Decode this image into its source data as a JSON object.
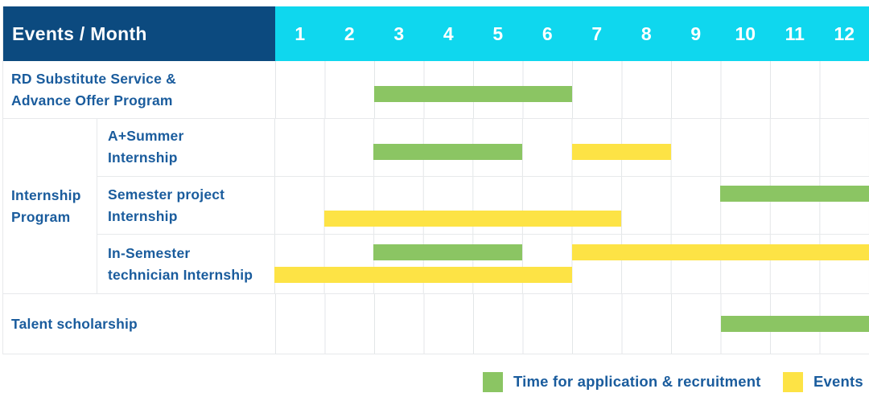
{
  "colors": {
    "navy": "#0c4a7f",
    "cyan": "#0fd7ee",
    "green": "#8bc563",
    "yellow": "#fde345",
    "text-blue": "#1a5c9d"
  },
  "header": {
    "corner_label": "Events / Month",
    "months": [
      "1",
      "2",
      "3",
      "4",
      "5",
      "6",
      "7",
      "8",
      "9",
      "10",
      "11",
      "12"
    ]
  },
  "group": {
    "label1": "Internship",
    "label2": "Program"
  },
  "rows": [
    {
      "label1": "RD Substitute Service &",
      "label2": "Advance Offer Program",
      "bars": [
        {
          "line": 0,
          "color": "green",
          "start": 3,
          "end": 6
        }
      ]
    },
    {
      "label1": "A+Summer",
      "label2": "Internship",
      "bars": [
        {
          "line": 0,
          "color": "green",
          "start": 3,
          "end": 5
        },
        {
          "line": 0,
          "color": "yellow",
          "start": 7,
          "end": 8
        }
      ]
    },
    {
      "label1": "Semester project",
      "label2": "Internship",
      "bars": [
        {
          "line": 0,
          "color": "green",
          "start": 10,
          "end": 12
        },
        {
          "line": 1,
          "color": "yellow",
          "start": 2,
          "end": 7
        }
      ]
    },
    {
      "label1": "In-Semester",
      "label2": "technician Internship",
      "bars": [
        {
          "line": 0,
          "color": "green",
          "start": 3,
          "end": 5
        },
        {
          "line": 0,
          "color": "yellow",
          "start": 7,
          "end": 12
        },
        {
          "line": 1,
          "color": "yellow",
          "start": 1,
          "end": 6
        }
      ]
    },
    {
      "label1": "Talent scholarship",
      "label2": "",
      "bars": [
        {
          "line": 0,
          "color": "green",
          "start": 10,
          "end": 12
        }
      ]
    }
  ],
  "legend": [
    {
      "color": "green",
      "label": "Time for application & recruitment"
    },
    {
      "color": "yellow",
      "label": "Events"
    }
  ],
  "chart_data": {
    "type": "table",
    "title": "Events / Month",
    "x_axis": {
      "label": "Month",
      "ticks": [
        1,
        2,
        3,
        4,
        5,
        6,
        7,
        8,
        9,
        10,
        11,
        12
      ],
      "range": [
        1,
        12
      ]
    },
    "grid": true,
    "legend_position": "bottom-right",
    "legend": [
      "Time for application & recruitment",
      "Events"
    ],
    "rows": [
      {
        "event": "RD Substitute Service & Advance Offer Program",
        "group": null,
        "application_recruitment_month_ranges": [
          [
            3,
            6
          ]
        ],
        "events_month_ranges": []
      },
      {
        "event": "A+Summer Internship",
        "group": "Internship Program",
        "application_recruitment_month_ranges": [
          [
            3,
            5
          ]
        ],
        "events_month_ranges": [
          [
            7,
            8
          ]
        ]
      },
      {
        "event": "Semester project Internship",
        "group": "Internship Program",
        "application_recruitment_month_ranges": [
          [
            10,
            12
          ]
        ],
        "events_month_ranges": [
          [
            2,
            7
          ]
        ]
      },
      {
        "event": "In-Semester technician Internship",
        "group": "Internship Program",
        "application_recruitment_month_ranges": [
          [
            3,
            5
          ]
        ],
        "events_month_ranges": [
          [
            7,
            12
          ],
          [
            1,
            6
          ]
        ]
      },
      {
        "event": "Talent scholarship",
        "group": null,
        "application_recruitment_month_ranges": [
          [
            10,
            12
          ]
        ],
        "events_month_ranges": []
      }
    ]
  }
}
